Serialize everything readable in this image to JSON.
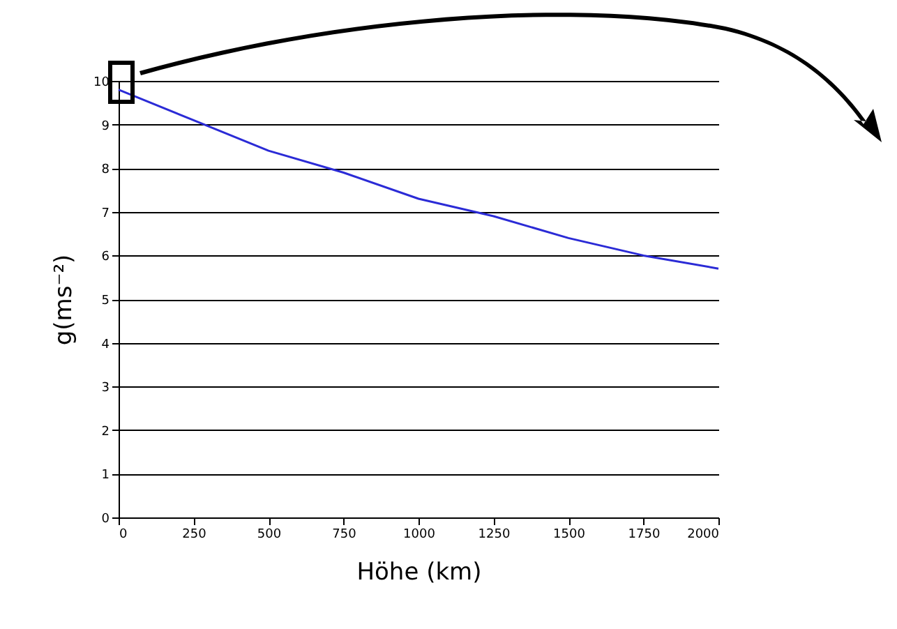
{
  "chart_data": {
    "type": "line",
    "xlabel": "Höhe (km)",
    "ylabel": "g(ms⁻²)",
    "x": [
      0,
      250,
      500,
      750,
      1000,
      1250,
      1500,
      1750,
      2000
    ],
    "series": [
      {
        "color": "#2b2bd6",
        "values": [
          9.8,
          9.1,
          8.4,
          7.9,
          7.3,
          6.9,
          6.4,
          6.0,
          5.7
        ]
      }
    ],
    "xlim": [
      0,
      2000
    ],
    "xticks": [
      0,
      250,
      500,
      750,
      1000,
      1250,
      1500,
      1750,
      2000
    ],
    "ylim": [
      0,
      10
    ],
    "yticks": [
      0,
      1,
      2,
      3,
      4,
      5,
      6,
      7,
      8,
      9,
      10
    ],
    "grid": "y",
    "marker": "none",
    "line_style": "solid"
  }
}
